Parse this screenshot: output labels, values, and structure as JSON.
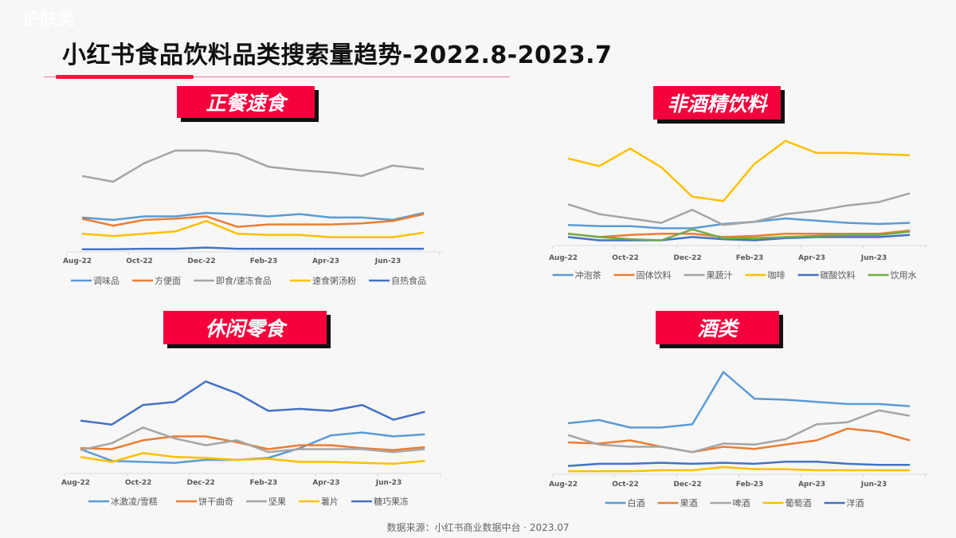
{
  "watermark": "护肤类",
  "title": "小红书食品饮料品类搜索量趋势-2022.8-2023.7",
  "source": "数据来源：小红书商业数据中台 · 2023.07",
  "colors": {
    "accent": "#f5003c",
    "blue": "#5b9bd5",
    "orange": "#ed7d31",
    "gray": "#a5a5a5",
    "yellow": "#ffc000",
    "darkblue": "#4472c4",
    "green": "#70ad47"
  },
  "chart_data": [
    {
      "type": "line",
      "title": "正餐速食",
      "categories": [
        "Aug-22",
        "Sep-22",
        "Oct-22",
        "Nov-22",
        "Dec-22",
        "Jan-23",
        "Feb-23",
        "Mar-23",
        "Apr-23",
        "May-23",
        "Jun-23",
        "Jul-23"
      ],
      "tick_labels": [
        "Aug-22",
        "Oct-22",
        "Dec-22",
        "Feb-23",
        "Apr-23",
        "Jun-23"
      ],
      "y_axis": "no labels, relative search volume",
      "grid": false,
      "legend": "bottom",
      "series": [
        {
          "name": "调味品",
          "color": "#5b9bd5",
          "values": [
            29,
            27,
            30,
            30,
            33,
            32,
            30,
            32,
            29,
            29,
            27,
            33
          ]
        },
        {
          "name": "方便面",
          "color": "#ed7d31",
          "values": [
            28,
            22,
            27,
            28,
            30,
            21,
            23,
            23,
            23,
            24,
            26,
            32
          ]
        },
        {
          "name": "即食/速冻食品",
          "color": "#a5a5a5",
          "values": [
            65,
            60,
            76,
            87,
            87,
            84,
            73,
            70,
            68,
            65,
            74,
            71
          ]
        },
        {
          "name": "速食粥汤粉",
          "color": "#ffc000",
          "values": [
            15,
            13,
            15,
            17,
            26,
            15,
            14,
            14,
            12,
            12,
            12,
            16
          ]
        },
        {
          "name": "自热食品",
          "color": "#4472c4",
          "values": [
            1.5,
            1.5,
            2,
            2,
            3,
            2,
            2,
            2,
            2,
            2,
            2,
            2
          ]
        }
      ]
    },
    {
      "type": "line",
      "title": "非酒精饮料",
      "categories": [
        "Aug-22",
        "Sep-22",
        "Oct-22",
        "Nov-22",
        "Dec-22",
        "Jan-23",
        "Feb-23",
        "Mar-23",
        "Apr-23",
        "May-23",
        "Jun-23",
        "Jul-23"
      ],
      "tick_labels": [
        "Aug-22",
        "Oct-22",
        "Dec-22",
        "Feb-23",
        "Apr-23",
        "Jun-23"
      ],
      "y_axis": "no labels, relative search volume",
      "grid": false,
      "legend": "bottom",
      "series": [
        {
          "name": "冲泡茶",
          "color": "#5b9bd5",
          "values": [
            18,
            17,
            17,
            15,
            15,
            19,
            21,
            24,
            22,
            20,
            19,
            20
          ]
        },
        {
          "name": "固体饮料",
          "color": "#ed7d31",
          "values": [
            10,
            7,
            9,
            10,
            10,
            7,
            8,
            10,
            10,
            10,
            10,
            13
          ]
        },
        {
          "name": "果蔬汁",
          "color": "#a5a5a5",
          "values": [
            37,
            28,
            24,
            20,
            32,
            18,
            21,
            28,
            31,
            36,
            39,
            47
          ]
        },
        {
          "name": "咖啡",
          "color": "#ffc000",
          "values": [
            79,
            72,
            88,
            71,
            44,
            40,
            74,
            95,
            84,
            84,
            83,
            82
          ]
        },
        {
          "name": "碳酸饮料",
          "color": "#4472c4",
          "values": [
            7,
            4,
            4,
            4,
            7,
            5,
            4,
            6,
            7,
            7,
            7,
            9
          ]
        },
        {
          "name": "饮用水",
          "color": "#70ad47",
          "values": [
            10,
            7,
            5,
            4,
            14,
            6,
            6,
            7,
            8,
            9,
            9,
            12
          ]
        }
      ]
    },
    {
      "type": "line",
      "title": "休闲零食",
      "categories": [
        "Aug-22",
        "Sep-22",
        "Oct-22",
        "Nov-22",
        "Dec-22",
        "Jan-23",
        "Feb-23",
        "Mar-23",
        "Apr-23",
        "May-23",
        "Jun-23",
        "Jul-23"
      ],
      "tick_labels": [
        "Aug-22",
        "Oct-22",
        "Dec-22",
        "Feb-23",
        "Apr-23",
        "Jun-23"
      ],
      "y_axis": "no labels, relative search volume",
      "grid": false,
      "legend": "bottom",
      "series": [
        {
          "name": "冰激凌/雪糕",
          "color": "#5b9bd5",
          "values": [
            24,
            12,
            11,
            10,
            13,
            13,
            15,
            25,
            38,
            41,
            37,
            39
          ]
        },
        {
          "name": "饼干曲奇",
          "color": "#ed7d31",
          "values": [
            25,
            24,
            33,
            37,
            37,
            31,
            24,
            28,
            28,
            25,
            23,
            26
          ]
        },
        {
          "name": "坚果",
          "color": "#a5a5a5",
          "values": [
            23,
            30,
            46,
            35,
            28,
            33,
            21,
            24,
            24,
            24,
            21,
            24
          ]
        },
        {
          "name": "薯片",
          "color": "#ffc000",
          "values": [
            16,
            11,
            20,
            16,
            15,
            13,
            14,
            11,
            11,
            10,
            9,
            12
          ]
        },
        {
          "name": "糖巧果冻",
          "color": "#4472c4",
          "values": [
            53,
            49,
            69,
            72,
            93,
            81,
            63,
            65,
            63,
            69,
            54,
            62
          ]
        }
      ]
    },
    {
      "type": "line",
      "title": "酒类",
      "categories": [
        "Aug-22",
        "Sep-22",
        "Oct-22",
        "Nov-22",
        "Dec-22",
        "Jan-23",
        "Feb-23",
        "Mar-23",
        "Apr-23",
        "May-23",
        "Jun-23",
        "Jul-23"
      ],
      "tick_labels": [
        "Aug-22",
        "Oct-22",
        "Dec-22",
        "Feb-23",
        "Apr-23",
        "Jun-23"
      ],
      "y_axis": "no labels, relative search volume",
      "grid": false,
      "legend": "bottom",
      "series": [
        {
          "name": "白酒",
          "color": "#5b9bd5",
          "values": [
            47,
            50,
            43,
            43,
            46,
            95,
            70,
            69,
            67,
            65,
            65,
            63
          ]
        },
        {
          "name": "果酒",
          "color": "#ed7d31",
          "values": [
            29,
            28,
            31,
            25,
            20,
            25,
            23,
            27,
            31,
            42,
            39,
            31
          ]
        },
        {
          "name": "啤酒",
          "color": "#a5a5a5",
          "values": [
            36,
            27,
            25,
            25,
            20,
            28,
            27,
            32,
            46,
            48,
            59,
            54
          ]
        },
        {
          "name": "葡萄酒",
          "color": "#ffc000",
          "values": [
            2,
            2,
            2,
            3,
            3,
            6,
            4,
            4,
            3,
            3,
            3,
            3
          ]
        },
        {
          "name": "洋酒",
          "color": "#4472c4",
          "values": [
            7,
            9,
            9,
            10,
            9,
            10,
            9,
            11,
            11,
            9,
            8,
            8
          ]
        }
      ]
    }
  ]
}
